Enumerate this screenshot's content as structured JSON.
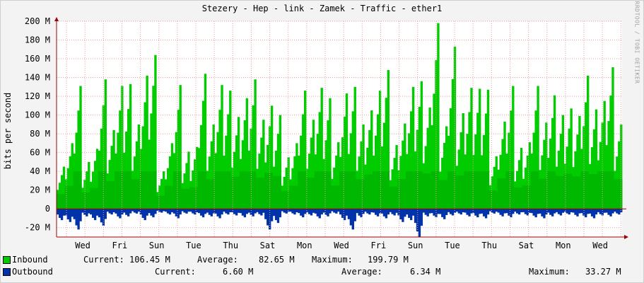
{
  "chart_data": {
    "type": "area",
    "title": "Stezery - Hep - link - Zamek - Traffic - ether1",
    "ylabel": "bits per second",
    "watermark": "RRDTOOL / TOBI OETIKER",
    "ylim": [
      -30,
      200
    ],
    "yticks": [
      {
        "value": 200,
        "label": "200 M"
      },
      {
        "value": 180,
        "label": "180 M"
      },
      {
        "value": 160,
        "label": "160 M"
      },
      {
        "value": 140,
        "label": "140 M"
      },
      {
        "value": 120,
        "label": "120 M"
      },
      {
        "value": 100,
        "label": "100 M"
      },
      {
        "value": 80,
        "label": "80 M"
      },
      {
        "value": 60,
        "label": "60 M"
      },
      {
        "value": 40,
        "label": "40 M"
      },
      {
        "value": 20,
        "label": "20 M"
      },
      {
        "value": 0,
        "label": "0"
      },
      {
        "value": -20,
        "label": "-20 M"
      }
    ],
    "xtick_labels": [
      "Wed",
      "Fri",
      "Sun",
      "Tue",
      "Thu",
      "Sat",
      "Mon",
      "Wed",
      "Fri",
      "Sun",
      "Tue",
      "Thu",
      "Sat",
      "Mon",
      "Wed"
    ],
    "colors": {
      "inbound": "#00cc00",
      "outbound": "#0033aa",
      "grid": "#e8a0a0",
      "axis": "#a00000"
    },
    "series": [
      {
        "name": "Inbound",
        "daily_peaks": [
          45,
          70,
          131,
          50,
          64,
          138,
          84,
          131,
          133,
          90,
          142,
          164,
          40,
          70,
          132,
          61,
          66,
          144,
          90,
          132,
          126,
          98,
          118,
          138,
          95,
          110,
          100,
          55,
          70,
          126,
          95,
          129,
          118,
          71,
          123,
          130,
          90,
          105,
          126,
          148,
          68,
          91,
          130,
          136,
          108,
          198,
          88,
          173,
          102,
          129,
          128,
          127,
          56,
          93,
          131,
          65,
          71,
          131,
          92,
          121,
          100,
          107,
          99,
          142,
          106,
          115,
          151,
          90
        ]
      },
      {
        "name": "Outbound",
        "daily_peaks": [
          -12,
          -14,
          -22,
          -8,
          -12,
          -18,
          -6,
          -10,
          -8,
          -5,
          -12,
          -9,
          -4,
          -6,
          -10,
          -5,
          -6,
          -9,
          -8,
          -10,
          -6,
          -7,
          -9,
          -8,
          -7,
          -22,
          -15,
          -5,
          -6,
          -9,
          -7,
          -10,
          -8,
          -5,
          -12,
          -22,
          -9,
          -6,
          -8,
          -10,
          -7,
          -14,
          -12,
          -30,
          -8,
          -9,
          -11,
          -7,
          -6,
          -8,
          -9,
          -10,
          -5,
          -8,
          -9,
          -6,
          -7,
          -9,
          -10,
          -8,
          -7,
          -6,
          -8,
          -9,
          -10,
          -7,
          -8,
          -6
        ]
      }
    ]
  },
  "legend": [
    {
      "name": "Inbound",
      "current_label": "Current:",
      "current": "106.45 M",
      "average_label": "Average:",
      "average": "82.65 M",
      "maximum_label": "Maximum:",
      "maximum": "199.79 M"
    },
    {
      "name": "Outbound",
      "current_label": "Current:",
      "current": "6.60 M",
      "average_label": "Average:",
      "average": "6.34 M",
      "maximum_label": "Maximum:",
      "maximum": "33.27 M"
    }
  ]
}
